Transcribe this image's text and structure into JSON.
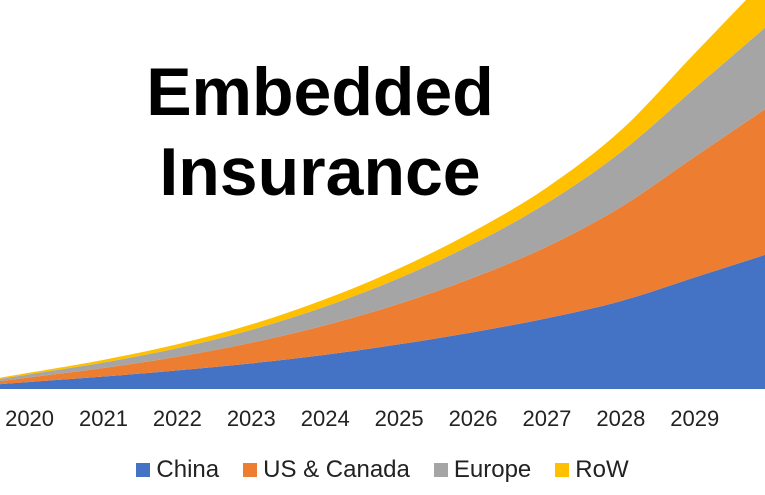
{
  "chart_data": {
    "type": "area",
    "stacked": true,
    "title": "Embedded Insurance",
    "title_lines": [
      "Embedded",
      "Insurance"
    ],
    "xlabel": "",
    "ylabel": "",
    "grid": false,
    "legend_position": "bottom",
    "categories": [
      "2020",
      "2021",
      "2022",
      "2023",
      "2024",
      "2025",
      "2026",
      "2027",
      "2028",
      "2029"
    ],
    "x_range": [
      2019.6,
      2029.95
    ],
    "ylim": [
      0,
      100
    ],
    "series": [
      {
        "name": "China",
        "color": "#4472C4",
        "values": [
          1.8,
          3.2,
          4.8,
          6.6,
          8.8,
          11.5,
          14.6,
          18.2,
          22.6,
          28.7
        ]
      },
      {
        "name": "US & Canada",
        "color": "#ED7D31",
        "values": [
          1.2,
          2.2,
          3.5,
          5.3,
          7.6,
          10.4,
          14.0,
          18.4,
          24.2,
          31.0
        ]
      },
      {
        "name": "Europe",
        "color": "#A5A5A5",
        "values": [
          0.8,
          1.4,
          2.2,
          3.3,
          4.8,
          6.6,
          8.7,
          11.2,
          14.1,
          17.6
        ]
      },
      {
        "name": "RoW",
        "color": "#FFC000",
        "values": [
          0.4,
          0.7,
          1.0,
          1.4,
          1.9,
          2.5,
          3.2,
          4.0,
          5.6,
          9.0
        ]
      }
    ]
  }
}
